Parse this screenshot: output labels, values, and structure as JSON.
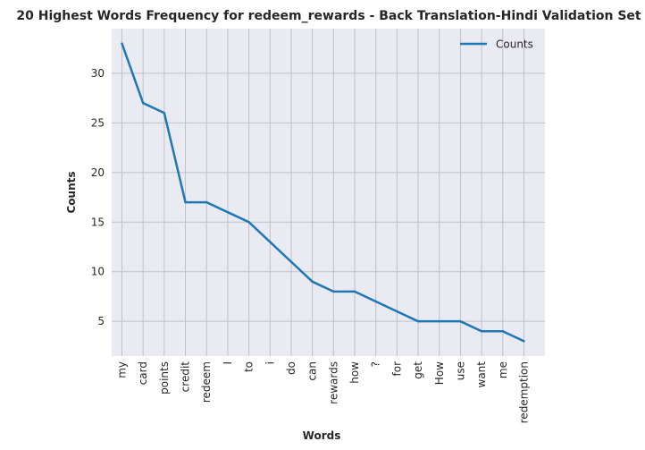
{
  "chart_data": {
    "type": "line",
    "title": "20 Highest Words Frequency for redeem_rewards - Back Translation-Hindi Validation Set",
    "xlabel": "Words",
    "ylabel": "Counts",
    "categories": [
      "my",
      "card",
      "points",
      "credit",
      "redeem",
      "I",
      "to",
      "i",
      "do",
      "can",
      "rewards",
      "how",
      "?",
      "for",
      "get",
      "How",
      "use",
      "want",
      "me",
      "redemption"
    ],
    "series": [
      {
        "name": "Counts",
        "color": "#1f77b4",
        "values": [
          33,
          27,
          26,
          17,
          17,
          16,
          15,
          13,
          11,
          9,
          8,
          8,
          7,
          6,
          5,
          5,
          5,
          4,
          4,
          3
        ]
      }
    ],
    "ylim": [
      1.5,
      34.5
    ],
    "yticks": [
      5,
      10,
      15,
      20,
      25,
      30
    ],
    "grid": true,
    "legend": "top-right",
    "background": "#eaeaf2",
    "grid_color": "#c0c0c8"
  }
}
